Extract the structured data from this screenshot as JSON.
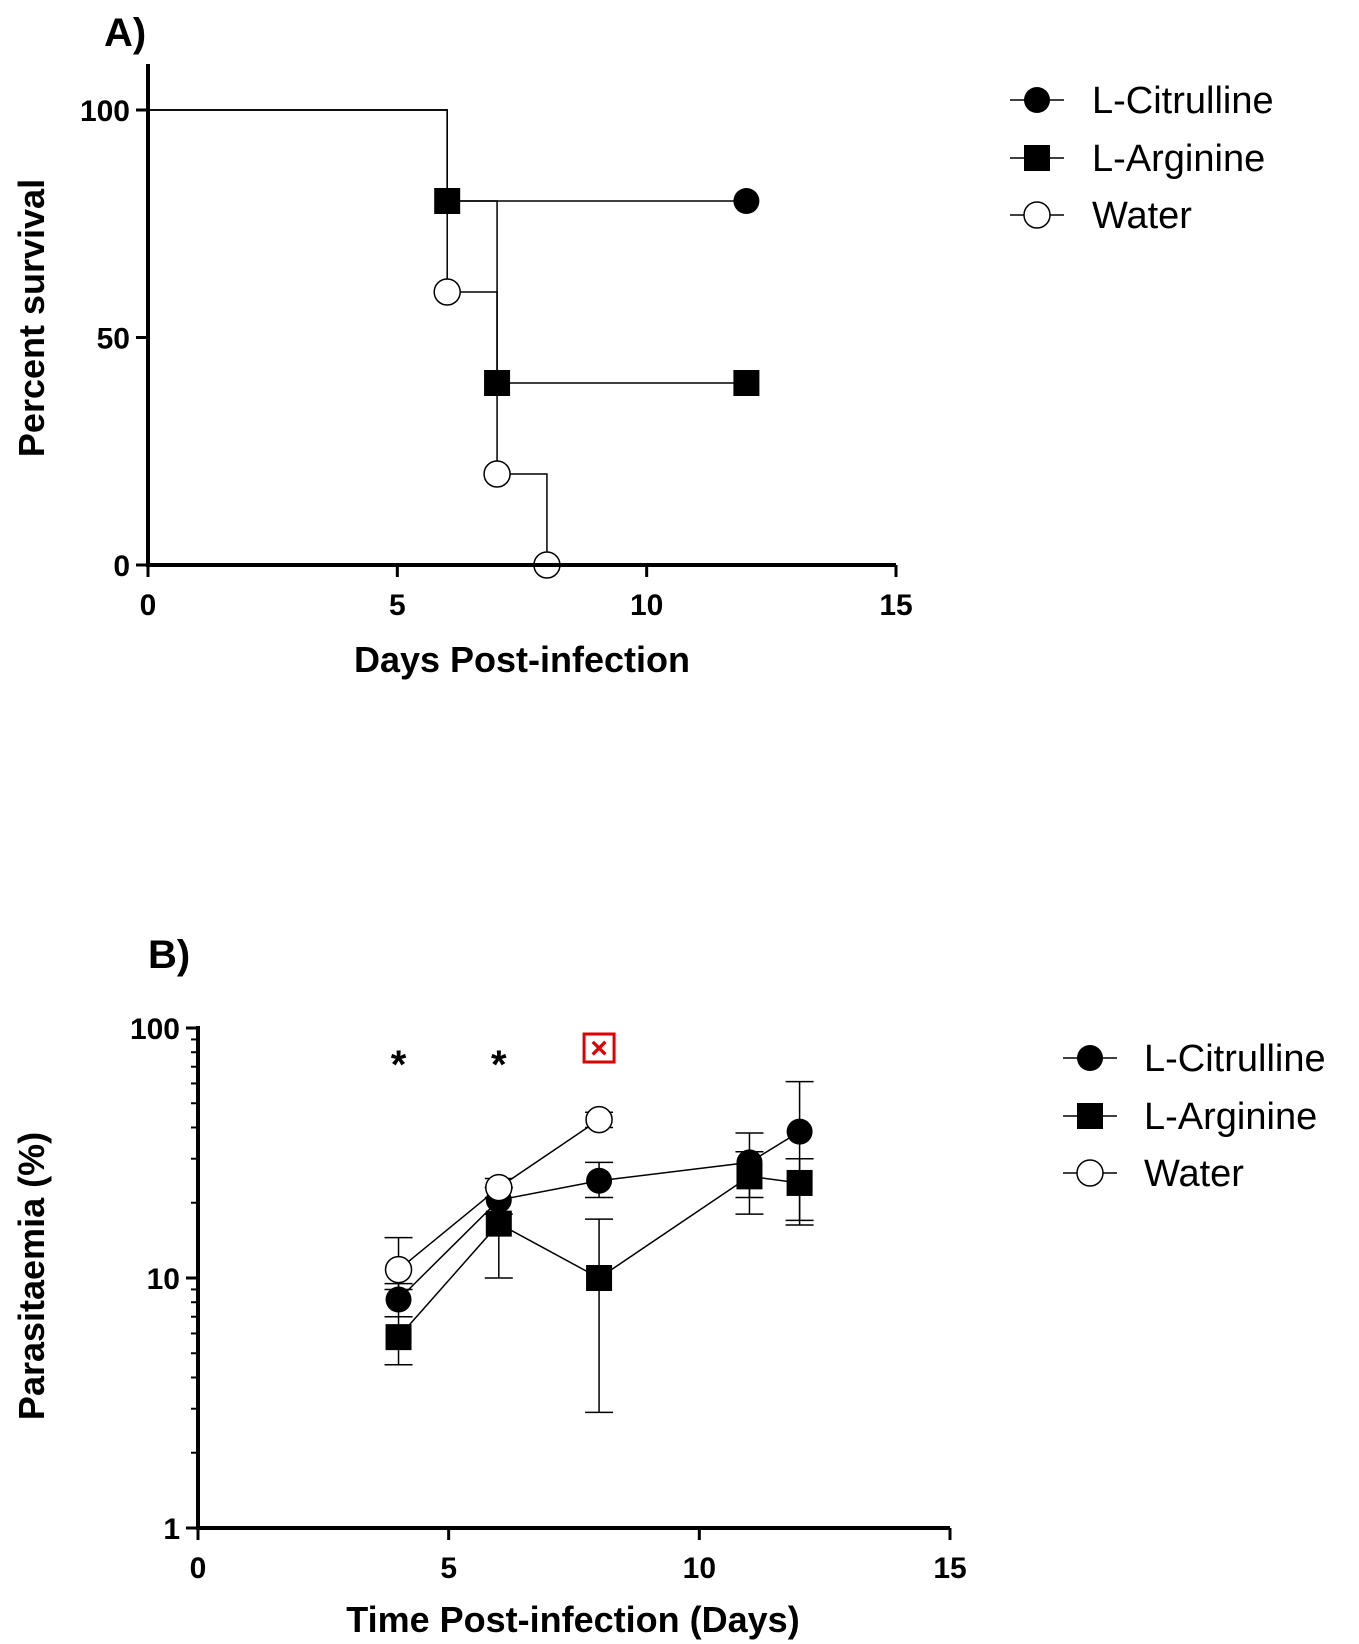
{
  "chart_data": [
    {
      "panel_label": "A)",
      "type": "line",
      "subtype": "kaplan-meier survival",
      "xlabel": "Days Post-infection",
      "ylabel": "Percent survival",
      "xlim": [
        0,
        15
      ],
      "ylim": [
        0,
        100
      ],
      "xticks": [
        0,
        5,
        10,
        15
      ],
      "yticks": [
        0,
        50,
        100
      ],
      "grid": false,
      "legend_position": "right",
      "series": [
        {
          "name": "L-Citrulline",
          "marker": "filled-circle",
          "steps": [
            [
              0,
              100
            ],
            [
              6,
              100
            ],
            [
              6,
              80
            ],
            [
              12,
              80
            ]
          ],
          "markers": [
            [
              12,
              80
            ]
          ]
        },
        {
          "name": "L-Arginine",
          "marker": "filled-square",
          "steps": [
            [
              0,
              100
            ],
            [
              6,
              100
            ],
            [
              6,
              80
            ],
            [
              7,
              80
            ],
            [
              7,
              40
            ],
            [
              12,
              40
            ]
          ],
          "markers": [
            [
              6,
              80
            ],
            [
              7,
              40
            ],
            [
              12,
              40
            ]
          ]
        },
        {
          "name": "Water",
          "marker": "open-circle",
          "steps": [
            [
              0,
              100
            ],
            [
              6,
              100
            ],
            [
              6,
              60
            ],
            [
              7,
              60
            ],
            [
              7,
              20
            ],
            [
              8,
              20
            ],
            [
              8,
              0
            ]
          ],
          "markers": [
            [
              6,
              60
            ],
            [
              7,
              20
            ],
            [
              8,
              0
            ]
          ]
        }
      ]
    },
    {
      "panel_label": "B)",
      "type": "line",
      "xlabel": "Time Post-infection (Days)",
      "ylabel": "Parasitaemia (%)",
      "xlim": [
        0,
        15
      ],
      "ylim": [
        1,
        100
      ],
      "yscale": "log",
      "xticks": [
        0,
        5,
        10,
        15
      ],
      "yticks": [
        1,
        10,
        100
      ],
      "grid": false,
      "legend_position": "right",
      "annotations": [
        {
          "text": "*",
          "x": 4
        },
        {
          "text": "*",
          "x": 6
        },
        {
          "text": "×",
          "x": 8,
          "color": "#e00000",
          "boxed": true
        }
      ],
      "series": [
        {
          "name": "L-Citrulline",
          "marker": "filled-circle",
          "x": [
            4,
            6,
            8,
            11,
            12
          ],
          "y": [
            8.2,
            20.5,
            24.5,
            29,
            38.5
          ],
          "err_upper": [
            9.5,
            23,
            29,
            38,
            61
          ],
          "err_lower": [
            7,
            18,
            21,
            21,
            17
          ]
        },
        {
          "name": "L-Arginine",
          "marker": "filled-square",
          "x": [
            4,
            6,
            8,
            11,
            12
          ],
          "y": [
            5.8,
            16.5,
            10,
            25.5,
            24
          ],
          "err_upper": [
            7,
            23,
            17.2,
            32,
            30
          ],
          "err_lower": [
            4.5,
            10,
            2.9,
            18,
            16.3
          ]
        },
        {
          "name": "Water",
          "marker": "open-circle",
          "x": [
            4,
            6,
            8
          ],
          "y": [
            10.8,
            23,
            43
          ],
          "err_upper": [
            14.5,
            25,
            46
          ],
          "err_lower": [
            9,
            21,
            40
          ]
        }
      ]
    }
  ]
}
